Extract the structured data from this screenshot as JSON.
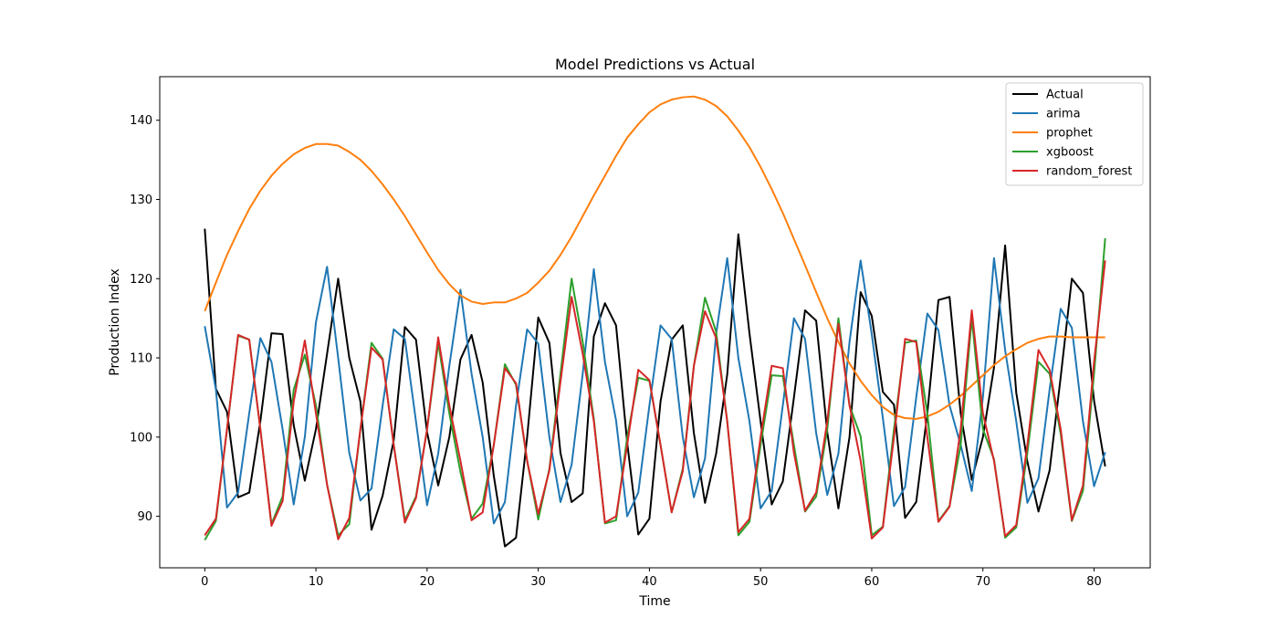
{
  "chart_data": {
    "type": "line",
    "title": "Model Predictions vs Actual",
    "xlabel": "Time",
    "ylabel": "Production Index",
    "xlim": [
      -4.05,
      85.05
    ],
    "ylim": [
      83.5,
      145.5
    ],
    "xticks": [
      0,
      10,
      20,
      30,
      40,
      50,
      60,
      70,
      80
    ],
    "yticks": [
      90,
      100,
      110,
      120,
      130,
      140
    ],
    "grid": false,
    "legend": "top-right",
    "series": [
      {
        "name": "Actual",
        "color": "#000000",
        "values": [
          126.3,
          106.1,
          103.2,
          92.4,
          93.0,
          102.0,
          113.1,
          113.0,
          101.5,
          94.5,
          101.0,
          110.5,
          120.0,
          110.0,
          104.5,
          88.3,
          92.6,
          99.6,
          113.9,
          112.3,
          100.6,
          93.9,
          100.0,
          109.8,
          112.9,
          106.9,
          95.1,
          86.2,
          87.3,
          100.0,
          115.1,
          111.9,
          98.0,
          91.8,
          92.9,
          112.7,
          116.9,
          114.1,
          99.3,
          87.7,
          89.7,
          104.5,
          112.3,
          114.1,
          100.5,
          91.7,
          97.9,
          107.9,
          125.6,
          113.1,
          102.0,
          91.5,
          94.4,
          105.0,
          116.0,
          114.7,
          100.6,
          91.0,
          100.0,
          118.3,
          115.3,
          105.7,
          104.1,
          89.8,
          91.8,
          103.0,
          117.3,
          117.7,
          103.0,
          94.6,
          100.0,
          108.8,
          124.2,
          105.6,
          96.9,
          90.6,
          95.8,
          107.6,
          120.0,
          118.2,
          104.6,
          96.3
        ]
      },
      {
        "name": "arima",
        "color": "#1f77b4",
        "values": [
          114.0,
          106.0,
          91.1,
          93.0,
          103.0,
          112.5,
          109.5,
          101.0,
          91.5,
          100.0,
          114.5,
          121.5,
          110.0,
          98.0,
          92.0,
          93.5,
          104.0,
          113.6,
          112.4,
          102.0,
          91.4,
          97.9,
          109.0,
          118.6,
          108.0,
          100.0,
          89.1,
          91.8,
          104.0,
          113.6,
          111.8,
          100.0,
          91.8,
          96.5,
          108.0,
          121.2,
          109.5,
          102.1,
          90.0,
          93.0,
          104.0,
          114.1,
          112.4,
          100.0,
          92.4,
          97.3,
          113.0,
          122.6,
          110.0,
          102.0,
          91.0,
          93.2,
          104.0,
          115.0,
          112.4,
          100.5,
          92.7,
          97.9,
          112.0,
          122.3,
          113.0,
          102.4,
          91.3,
          93.7,
          105.0,
          115.6,
          113.5,
          104.0,
          99.0,
          93.2,
          105.0,
          122.6,
          111.0,
          102.0,
          91.7,
          94.8,
          106.0,
          116.2,
          113.8,
          102.0,
          93.8,
          98.1
        ]
      },
      {
        "name": "prophet",
        "color": "#ff7f0e",
        "values": [
          115.9,
          119.5,
          123.0,
          126.0,
          128.8,
          131.1,
          133.0,
          134.5,
          135.7,
          136.5,
          137.0,
          137.0,
          136.8,
          136.0,
          135.0,
          133.6,
          131.9,
          130.0,
          127.9,
          125.6,
          123.3,
          121.1,
          119.3,
          117.9,
          117.1,
          116.8,
          117.0,
          117.0,
          117.5,
          118.2,
          119.5,
          121.0,
          123.0,
          125.3,
          127.9,
          130.5,
          133.0,
          135.5,
          137.8,
          139.5,
          141.0,
          142.0,
          142.6,
          142.9,
          143.0,
          142.6,
          141.8,
          140.5,
          138.7,
          136.6,
          134.1,
          131.3,
          128.3,
          125.0,
          121.7,
          118.3,
          115.0,
          112.0,
          109.3,
          107.1,
          105.3,
          103.8,
          102.8,
          102.4,
          102.3,
          102.6,
          103.2,
          104.1,
          105.2,
          106.5,
          107.8,
          109.1,
          110.2,
          111.1,
          111.9,
          112.4,
          112.7,
          112.7,
          112.6,
          112.6,
          112.6,
          112.6
        ]
      },
      {
        "name": "xgboost",
        "color": "#2ca02c",
        "values": [
          87.0,
          89.4,
          101.0,
          112.8,
          112.3,
          101.0,
          89.0,
          92.5,
          106.0,
          110.4,
          104.0,
          94.0,
          87.6,
          89.0,
          101.0,
          111.9,
          109.9,
          99.0,
          89.5,
          92.5,
          101.0,
          111.9,
          103.0,
          95.6,
          89.7,
          91.6,
          99.0,
          109.2,
          106.6,
          97.0,
          89.6,
          96.0,
          108.0,
          120.0,
          112.0,
          102.3,
          89.1,
          89.5,
          100.0,
          107.5,
          107.1,
          99.0,
          90.5,
          96.0,
          109.0,
          117.6,
          113.3,
          102.0,
          87.6,
          89.3,
          99.0,
          107.8,
          107.7,
          99.0,
          90.6,
          92.5,
          101.0,
          115.0,
          104.0,
          100.1,
          87.6,
          88.7,
          101.0,
          111.9,
          112.2,
          103.0,
          89.4,
          91.3,
          99.0,
          115.0,
          101.0,
          97.2,
          87.3,
          88.6,
          98.0,
          109.5,
          108.0,
          100.4,
          89.4,
          93.2,
          108.0,
          125.1
        ]
      },
      {
        "name": "random_forest",
        "color": "#d62728",
        "values": [
          87.6,
          89.7,
          101.0,
          112.9,
          112.3,
          101.0,
          88.8,
          91.9,
          104.5,
          112.2,
          103.0,
          94.0,
          87.1,
          89.8,
          101.0,
          111.3,
          109.8,
          99.0,
          89.2,
          92.3,
          101.0,
          112.6,
          104.0,
          97.0,
          89.5,
          90.5,
          99.0,
          108.7,
          106.8,
          97.0,
          90.3,
          95.8,
          107.0,
          117.7,
          110.5,
          102.0,
          89.2,
          90.0,
          99.0,
          108.5,
          107.2,
          99.0,
          90.5,
          95.7,
          109.0,
          115.9,
          112.5,
          102.0,
          88.0,
          89.7,
          100.0,
          109.0,
          108.7,
          98.0,
          90.7,
          93.0,
          102.0,
          114.3,
          104.0,
          97.0,
          87.2,
          88.6,
          100.0,
          112.4,
          112.0,
          100.0,
          89.3,
          91.2,
          101.0,
          116.0,
          103.0,
          97.0,
          87.5,
          88.9,
          99.0,
          111.0,
          108.5,
          101.0,
          89.5,
          93.9,
          109.5,
          122.3
        ]
      }
    ]
  }
}
